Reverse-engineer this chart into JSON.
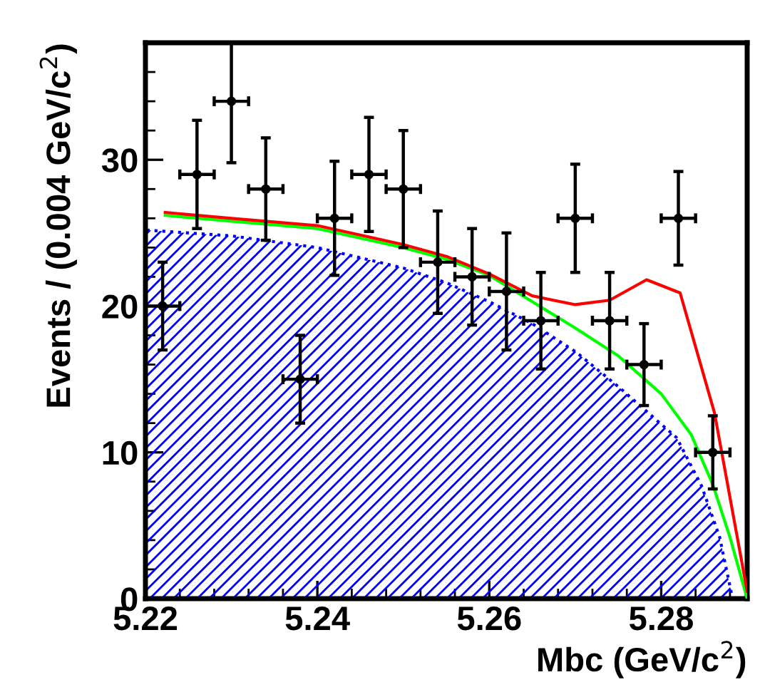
{
  "chart_data": {
    "type": "scatter",
    "xlabel": "Mbc (GeV/c$^{2}$)",
    "ylabel": "Events / (0.004 GeV/c$^{2}$)",
    "xlim": [
      5.22,
      5.29
    ],
    "xticks": [
      {
        "value": 5.22,
        "label": "5.22"
      },
      {
        "value": 5.24,
        "label": "5.24"
      },
      {
        "value": 5.26,
        "label": "5.26"
      },
      {
        "value": 5.28,
        "label": "5.28"
      }
    ],
    "ylim": [
      0,
      38
    ],
    "yticks": [
      0,
      10,
      20,
      30
    ],
    "grid": false,
    "legend": false,
    "series": [
      {
        "type": "area",
        "color": "#0000ff",
        "line_style": "dotted",
        "x": [
          5.22,
          5.23,
          5.24,
          5.25,
          5.255,
          5.26,
          5.265,
          5.27,
          5.275,
          5.2818,
          5.2847,
          5.2868,
          5.2883
        ],
        "values": [
          25.2,
          24.8,
          24.0,
          22.6,
          21.6,
          20.3,
          18.8,
          16.9,
          14.5,
          11.0,
          7.7,
          4.2,
          0
        ]
      },
      {
        "type": "line",
        "color": "#00ff00",
        "line_style": "solid",
        "x": [
          5.2223,
          5.23,
          5.24,
          5.25,
          5.255,
          5.26,
          5.265,
          5.27,
          5.275,
          5.28,
          5.2835,
          5.286,
          5.288,
          5.29
        ],
        "values": [
          26.2,
          25.8,
          25.3,
          24.0,
          23.2,
          22.1,
          20.3,
          18.5,
          16.6,
          14.0,
          11.2,
          7.8,
          4.2,
          0
        ]
      },
      {
        "type": "line",
        "color": "#ff0000",
        "line_style": "solid",
        "x": [
          5.2223,
          5.23,
          5.24,
          5.25,
          5.255,
          5.26,
          5.265,
          5.27,
          5.274,
          5.2783,
          5.2822,
          5.2862,
          5.29
        ],
        "values": [
          26.4,
          26.0,
          25.5,
          24.2,
          23.4,
          22.2,
          20.7,
          20.1,
          20.4,
          21.8,
          20.9,
          12.7,
          0.5
        ]
      },
      {
        "color": "#000000",
        "marker": "circle",
        "x": [
          5.222,
          5.226,
          5.23,
          5.234,
          5.238,
          5.242,
          5.246,
          5.25,
          5.254,
          5.258,
          5.262,
          5.266,
          5.27,
          5.274,
          5.278,
          5.282,
          5.286
        ],
        "values": [
          20,
          29,
          34,
          28,
          15,
          26,
          29,
          28,
          23,
          22,
          21,
          19,
          26,
          19,
          16,
          26,
          10
        ],
        "errors": [
          3,
          3.7,
          4.2,
          3.5,
          3,
          3.9,
          3.9,
          4,
          3.5,
          3.3,
          4,
          3.3,
          3.7,
          3.3,
          2.8,
          3.2,
          2.5
        ],
        "xerrors": [
          0.002,
          0.002,
          0.002,
          0.002,
          0.002,
          0.002,
          0.002,
          0.002,
          0.002,
          0.002,
          0.002,
          0.002,
          0.002,
          0.002,
          0.002,
          0.002,
          0.002
        ]
      }
    ]
  }
}
